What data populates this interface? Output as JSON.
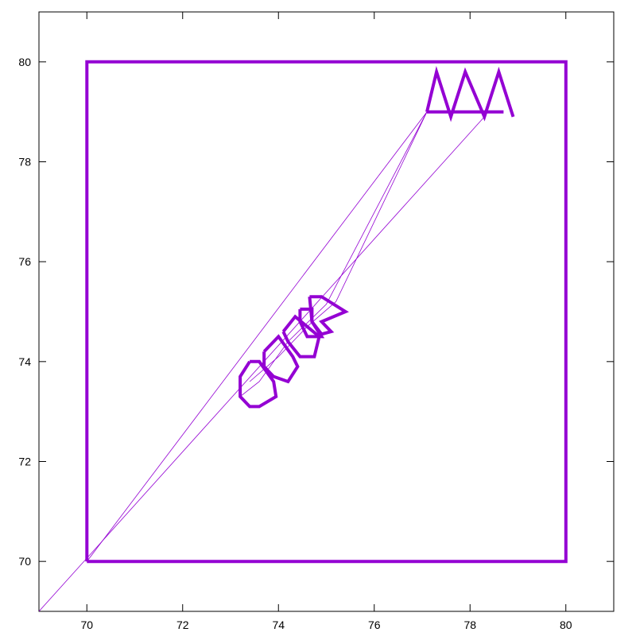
{
  "chart_data": {
    "type": "line",
    "title": "",
    "xlabel": "",
    "ylabel": "",
    "xlim": [
      69,
      81
    ],
    "ylim": [
      69,
      81
    ],
    "xticks": [
      70,
      72,
      74,
      76,
      78,
      80
    ],
    "yticks": [
      70,
      72,
      74,
      76,
      78,
      80
    ],
    "grid": false,
    "legend": "none",
    "colors": {
      "series": "#9400d3",
      "axes": "#000000",
      "background": "#ffffff"
    },
    "series": [
      {
        "style": "thick",
        "points": [
          [
            70,
            70
          ],
          [
            70,
            80
          ],
          [
            80,
            80
          ],
          [
            80,
            70
          ],
          [
            70,
            70
          ]
        ]
      },
      {
        "style": "thick",
        "points": [
          [
            77.1,
            79.0
          ],
          [
            77.3,
            79.8
          ],
          [
            77.6,
            78.9
          ],
          [
            77.9,
            79.8
          ],
          [
            78.3,
            78.9
          ],
          [
            78.6,
            79.8
          ],
          [
            78.9,
            78.9
          ]
        ]
      },
      {
        "style": "thick",
        "points": [
          [
            77.1,
            79.0
          ],
          [
            78.7,
            79.0
          ]
        ]
      },
      {
        "style": "thick",
        "points": [
          [
            73.4,
            74.0
          ],
          [
            73.6,
            74.0
          ],
          [
            73.9,
            73.6
          ],
          [
            73.95,
            73.3
          ],
          [
            73.6,
            73.1
          ],
          [
            73.4,
            73.1
          ],
          [
            73.2,
            73.3
          ],
          [
            73.2,
            73.7
          ],
          [
            73.4,
            74.0
          ]
        ]
      },
      {
        "style": "thick",
        "points": [
          [
            73.7,
            74.2
          ],
          [
            74.0,
            74.5
          ],
          [
            74.3,
            74.1
          ],
          [
            74.4,
            73.9
          ],
          [
            74.2,
            73.6
          ],
          [
            73.9,
            73.7
          ],
          [
            73.7,
            73.9
          ],
          [
            73.7,
            74.2
          ]
        ]
      },
      {
        "style": "thick",
        "points": [
          [
            74.1,
            74.6
          ],
          [
            74.35,
            74.9
          ],
          [
            74.6,
            74.7
          ],
          [
            74.85,
            74.5
          ],
          [
            74.75,
            74.1
          ],
          [
            74.45,
            74.1
          ],
          [
            74.2,
            74.4
          ],
          [
            74.1,
            74.6
          ]
        ]
      },
      {
        "style": "thick",
        "points": [
          [
            74.45,
            75.05
          ],
          [
            74.7,
            75.05
          ],
          [
            74.7,
            74.8
          ],
          [
            74.9,
            74.5
          ],
          [
            74.6,
            74.5
          ],
          [
            74.45,
            74.8
          ],
          [
            74.45,
            75.05
          ]
        ]
      },
      {
        "style": "thick",
        "points": [
          [
            74.65,
            75.3
          ],
          [
            74.9,
            75.3
          ],
          [
            75.4,
            75.0
          ],
          [
            74.9,
            74.8
          ],
          [
            75.1,
            74.6
          ],
          [
            74.9,
            74.55
          ],
          [
            74.7,
            74.8
          ],
          [
            74.65,
            75.3
          ]
        ]
      },
      {
        "style": "thin",
        "points": [
          [
            77.1,
            79.0
          ],
          [
            70.0,
            70.0
          ]
        ]
      },
      {
        "style": "thin",
        "points": [
          [
            78.3,
            78.9
          ],
          [
            69.0,
            69.0
          ]
        ]
      },
      {
        "style": "thin",
        "points": [
          [
            77.1,
            79.0
          ],
          [
            75.0,
            75.15
          ],
          [
            74.2,
            74.4
          ],
          [
            73.6,
            73.6
          ],
          [
            73.2,
            73.3
          ]
        ]
      },
      {
        "style": "thin",
        "points": [
          [
            77.1,
            79.0
          ],
          [
            75.2,
            75.2
          ],
          [
            74.6,
            74.7
          ],
          [
            74.0,
            74.1
          ],
          [
            73.4,
            73.6
          ]
        ]
      }
    ]
  }
}
